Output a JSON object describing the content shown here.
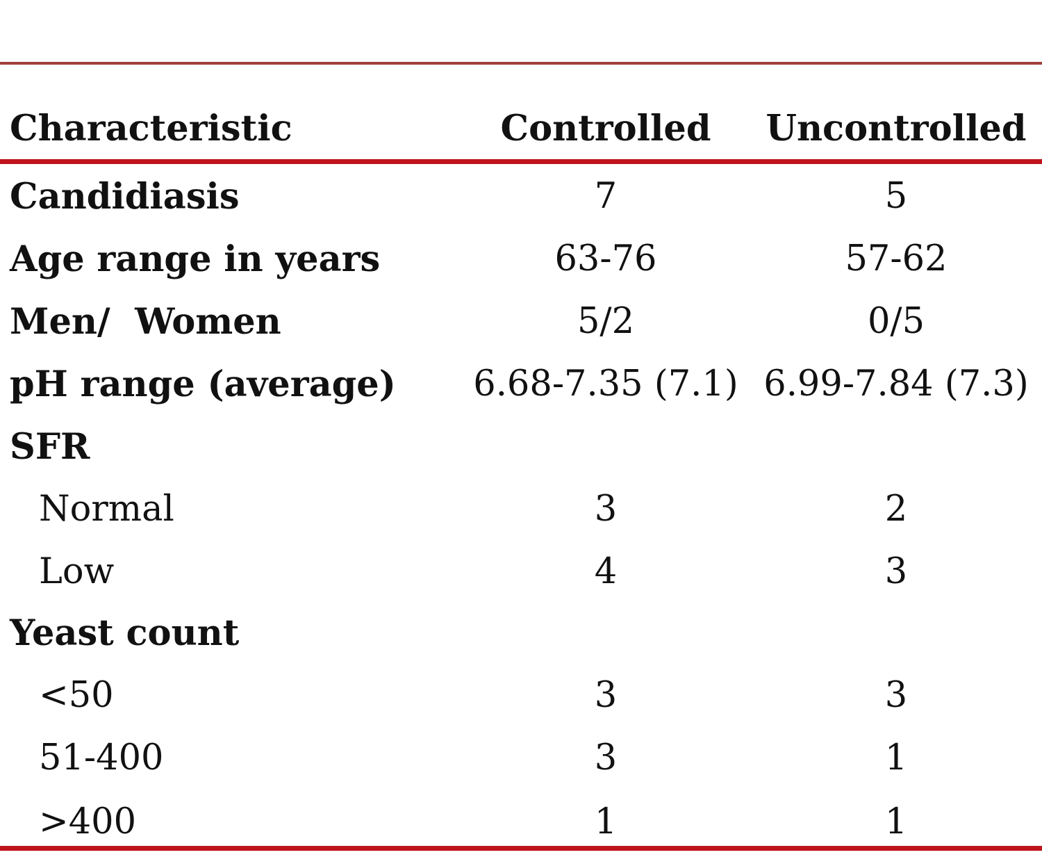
{
  "table": {
    "headers": {
      "characteristic": "Characteristic",
      "controlled": "Controlled",
      "uncontrolled": "Uncontrolled"
    },
    "rows": [
      {
        "label": "Candidiasis",
        "controlled": "7",
        "uncontrolled": "5"
      },
      {
        "label": "Age range in years",
        "controlled": "63-76",
        "uncontrolled": "57-62"
      },
      {
        "label": "Men/  Women",
        "controlled": "5/2",
        "uncontrolled": "0/5"
      },
      {
        "label": "pH range (average)",
        "controlled": "6.68-7.35 (7.1)",
        "uncontrolled": "6.99-7.84 (7.3)"
      },
      {
        "label": "SFR",
        "controlled": "",
        "uncontrolled": ""
      },
      {
        "label": "Normal",
        "controlled": "3",
        "uncontrolled": "2"
      },
      {
        "label": "Low",
        "controlled": "4",
        "uncontrolled": "3"
      },
      {
        "label": "Yeast count",
        "controlled": "",
        "uncontrolled": ""
      },
      {
        "label": "<50",
        "controlled": "3",
        "uncontrolled": "3"
      },
      {
        "label": "51-400",
        "controlled": "3",
        "uncontrolled": "1"
      },
      {
        "label": ">400",
        "controlled": "1",
        "uncontrolled": "1"
      }
    ]
  },
  "colors": {
    "top_rule": "#a0403c",
    "header_rule": "#c0141c",
    "bottom_rule": "#c0141c",
    "text": "#111111"
  }
}
